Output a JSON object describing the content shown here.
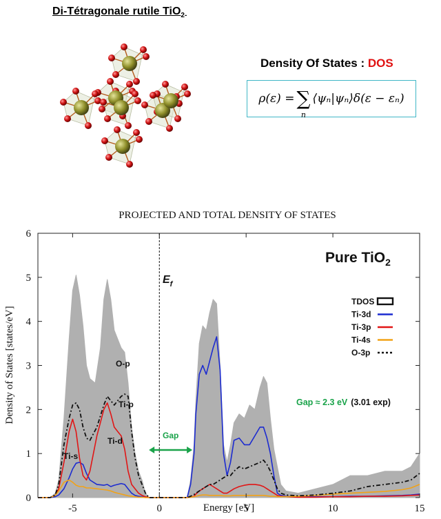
{
  "header": {
    "crystal_title_main": "Di-Tétragonale rutile TiO",
    "crystal_title_sub": "2-",
    "dos_title_prefix": "Density Of States : ",
    "dos_title_acronym": "DOS",
    "formula": {
      "lhs": "ρ(ε) = ",
      "sum_symbol": "∑",
      "sum_index": "n",
      "rhs": "⟨ψₙ|ψₙ⟩δ(ε − εₙ)"
    }
  },
  "colors": {
    "tdos_fill": "#b0b0b0",
    "ti3d": "#1c2bd0",
    "ti3p": "#e11515",
    "ti4s": "#f2a216",
    "o3p": "#111111",
    "gap_green": "#1aa34a",
    "accent_red": "#e01010",
    "formula_border": "#3fb6c6",
    "ti_atom": "#8f8f2a",
    "o_atom": "#d11414"
  },
  "chart_data": {
    "type": "area",
    "title": "PROJECTED AND TOTAL DENSITY OF STATES",
    "xlabel": "Energy [eV]",
    "ylabel": "Density of States [states/eV]",
    "xlim": [
      -7,
      15
    ],
    "ylim": [
      0,
      6
    ],
    "xticks": [
      -5,
      0,
      5,
      10,
      15
    ],
    "yticks": [
      0,
      1,
      2,
      3,
      4,
      5,
      6
    ],
    "grid": false,
    "legend_position": "right",
    "annotations": {
      "system": "Pure TiO",
      "system_sub": "2",
      "fermi_level_label": "E",
      "fermi_level_sub": "f",
      "fermi_level_x": 0,
      "gap_label": "Gap",
      "gap_start": -0.6,
      "gap_end": 1.9,
      "gap_value": "Gap ≈ 2.3 eV",
      "gap_exp": "(3.01 exp)",
      "op_label": "O-p",
      "tip_label": "Ti-p",
      "tid_label": "Ti-d",
      "tis_label": "Ti-s"
    },
    "series": [
      {
        "name": "TDOS",
        "x": [
          -7,
          -6.3,
          -6,
          -5.8,
          -5.5,
          -5.2,
          -5,
          -4.8,
          -4.6,
          -4.4,
          -4.2,
          -4,
          -3.7,
          -3.4,
          -3.2,
          -3,
          -2.8,
          -2.6,
          -2.4,
          -2.2,
          -2,
          -1.8,
          -1.6,
          -1.4,
          -1.2,
          -1,
          -0.8,
          -0.6,
          1.6,
          1.8,
          2,
          2.1,
          2.3,
          2.5,
          2.7,
          2.9,
          3.1,
          3.3,
          3.5,
          3.7,
          3.9,
          4.1,
          4.3,
          4.6,
          4.9,
          5.2,
          5.5,
          5.8,
          6,
          6.2,
          6.4,
          6.6,
          6.8,
          7,
          7.3,
          8,
          9,
          10,
          11,
          12,
          13,
          14,
          14.5,
          15
        ],
        "values": [
          0,
          0,
          0.1,
          0.4,
          1.8,
          3.6,
          4.7,
          5.05,
          4.6,
          3.9,
          3.0,
          2.7,
          2.6,
          3.4,
          4.5,
          4.95,
          4.5,
          3.8,
          3.6,
          3.4,
          3.3,
          2.6,
          1.6,
          1.0,
          0.6,
          0.4,
          0.1,
          0,
          0,
          0.4,
          1.2,
          2.2,
          3.5,
          3.9,
          3.8,
          4.2,
          4.5,
          4.4,
          3.0,
          1.2,
          0.8,
          1.2,
          1.7,
          1.9,
          1.8,
          2.1,
          2.0,
          2.5,
          2.75,
          2.6,
          1.8,
          1.1,
          0.7,
          0.3,
          0.15,
          0.1,
          0.2,
          0.3,
          0.5,
          0.5,
          0.6,
          0.6,
          0.7,
          1.0
        ]
      },
      {
        "name": "Ti-3d",
        "x": [
          -7,
          -6.3,
          -6,
          -5.8,
          -5.5,
          -5.2,
          -5,
          -4.8,
          -4.6,
          -4.4,
          -4.2,
          -4,
          -3.6,
          -3.2,
          -3,
          -2.8,
          -2.6,
          -2.4,
          -2.2,
          -2,
          -1.8,
          -1.6,
          -1.4,
          -1.2,
          -1,
          -0.8,
          -0.6,
          1.6,
          1.8,
          2,
          2.1,
          2.3,
          2.5,
          2.7,
          2.9,
          3.1,
          3.3,
          3.5,
          3.7,
          3.9,
          4.1,
          4.3,
          4.6,
          4.9,
          5.2,
          5.5,
          5.8,
          6,
          6.2,
          6.4,
          6.6,
          6.8,
          7,
          7.3,
          8,
          9,
          10,
          11,
          12,
          13,
          14,
          14.5,
          15
        ],
        "values": [
          0,
          0,
          0.02,
          0.06,
          0.2,
          0.45,
          0.65,
          0.78,
          0.8,
          0.75,
          0.55,
          0.4,
          0.3,
          0.28,
          0.3,
          0.25,
          0.28,
          0.3,
          0.32,
          0.3,
          0.2,
          0.1,
          0.05,
          0.03,
          0.02,
          0.01,
          0,
          0,
          0.3,
          1.0,
          1.9,
          2.8,
          3.0,
          2.8,
          3.1,
          3.4,
          3.65,
          2.9,
          1.0,
          0.5,
          0.8,
          1.3,
          1.35,
          1.2,
          1.2,
          1.4,
          1.6,
          1.6,
          1.35,
          1.0,
          0.5,
          0.1,
          0.05,
          0.03,
          0.02,
          0.02,
          0.02,
          0.03,
          0.03,
          0.04,
          0.05,
          0.06,
          0.08
        ]
      },
      {
        "name": "Ti-3p",
        "x": [
          -7,
          -6.3,
          -6,
          -5.8,
          -5.5,
          -5.2,
          -5,
          -4.8,
          -4.6,
          -4.4,
          -4.2,
          -4,
          -3.6,
          -3.2,
          -3,
          -2.8,
          -2.6,
          -2.4,
          -2.2,
          -2,
          -1.8,
          -1.6,
          -1.4,
          -1.2,
          -1,
          -0.8,
          -0.6,
          1.6,
          1.8,
          2,
          2.1,
          2.3,
          2.5,
          2.7,
          2.9,
          3.1,
          3.3,
          3.5,
          3.7,
          3.9,
          4.1,
          4.3,
          4.6,
          4.9,
          5.2,
          5.5,
          5.8,
          6,
          6.2,
          6.4,
          6.6,
          6.8,
          7,
          7.3,
          8,
          9,
          10,
          11,
          12,
          13,
          14,
          14.5,
          15
        ],
        "values": [
          0,
          0,
          0.05,
          0.2,
          0.8,
          1.5,
          1.78,
          1.5,
          0.9,
          0.5,
          0.4,
          0.6,
          1.4,
          2.0,
          2.15,
          1.9,
          1.6,
          1.5,
          1.4,
          1.1,
          0.6,
          0.3,
          0.2,
          0.1,
          0.05,
          0.02,
          0,
          0,
          0.01,
          0.03,
          0.08,
          0.15,
          0.2,
          0.25,
          0.3,
          0.25,
          0.2,
          0.15,
          0.1,
          0.1,
          0.15,
          0.2,
          0.25,
          0.28,
          0.3,
          0.3,
          0.28,
          0.25,
          0.2,
          0.15,
          0.1,
          0.05,
          0.03,
          0.02,
          0.01,
          0.01,
          0.02,
          0.02,
          0.03,
          0.03,
          0.04,
          0.05,
          0.06
        ]
      },
      {
        "name": "Ti-4s",
        "x": [
          -7,
          -6.3,
          -6,
          -5.8,
          -5.5,
          -5.2,
          -5,
          -4.8,
          -4.6,
          -4.4,
          -4.2,
          -4,
          -3.6,
          -3.2,
          -3,
          -2.8,
          -2.6,
          -2.4,
          -2.2,
          -2,
          -1.8,
          -1.6,
          -1.4,
          -1.2,
          -1,
          -0.8,
          -0.6,
          1.6,
          1.8,
          2,
          2.1,
          2.3,
          2.5,
          2.7,
          2.9,
          3.1,
          3.3,
          3.5,
          3.7,
          3.9,
          4.1,
          4.3,
          4.6,
          4.9,
          5.2,
          5.5,
          5.8,
          6,
          6.2,
          6.4,
          6.6,
          6.8,
          7,
          7.3,
          8,
          9,
          10,
          11,
          12,
          13,
          14,
          14.5,
          15
        ],
        "values": [
          0,
          0,
          0.05,
          0.15,
          0.35,
          0.4,
          0.35,
          0.28,
          0.25,
          0.25,
          0.22,
          0.22,
          0.2,
          0.18,
          0.17,
          0.15,
          0.12,
          0.1,
          0.08,
          0.06,
          0.04,
          0.03,
          0.02,
          0.01,
          0.01,
          0,
          0,
          0,
          0.01,
          0.02,
          0.03,
          0.05,
          0.06,
          0.06,
          0.05,
          0.05,
          0.05,
          0.05,
          0.04,
          0.04,
          0.04,
          0.05,
          0.05,
          0.05,
          0.05,
          0.05,
          0.05,
          0.05,
          0.04,
          0.03,
          0.03,
          0.02,
          0.02,
          0.02,
          0.03,
          0.05,
          0.08,
          0.1,
          0.12,
          0.14,
          0.18,
          0.22,
          0.3
        ]
      },
      {
        "name": "O-3p",
        "x": [
          -7,
          -6.3,
          -6,
          -5.8,
          -5.5,
          -5.2,
          -5,
          -4.8,
          -4.6,
          -4.4,
          -4.2,
          -4,
          -3.6,
          -3.2,
          -3,
          -2.8,
          -2.6,
          -2.4,
          -2.2,
          -2,
          -1.8,
          -1.6,
          -1.4,
          -1.2,
          -1,
          -0.8,
          -0.6,
          1.6,
          1.8,
          2,
          2.1,
          2.3,
          2.5,
          2.7,
          2.9,
          3.1,
          3.3,
          3.5,
          3.7,
          3.9,
          4.1,
          4.3,
          4.6,
          4.9,
          5.2,
          5.5,
          5.8,
          6,
          6.2,
          6.4,
          6.6,
          6.8,
          7,
          7.3,
          8,
          9,
          10,
          11,
          12,
          13,
          14,
          14.5,
          15
        ],
        "values": [
          0,
          0,
          0.06,
          0.3,
          1.2,
          1.8,
          2.1,
          2.15,
          2.0,
          1.6,
          1.35,
          1.3,
          1.6,
          2.1,
          2.3,
          2.2,
          2.1,
          2.2,
          2.3,
          2.35,
          2.3,
          1.5,
          0.9,
          0.5,
          0.3,
          0.1,
          0,
          0,
          0.03,
          0.07,
          0.1,
          0.15,
          0.2,
          0.25,
          0.3,
          0.3,
          0.35,
          0.4,
          0.45,
          0.5,
          0.5,
          0.6,
          0.7,
          0.65,
          0.7,
          0.75,
          0.8,
          0.85,
          0.75,
          0.6,
          0.4,
          0.2,
          0.1,
          0.06,
          0.04,
          0.06,
          0.1,
          0.15,
          0.25,
          0.3,
          0.35,
          0.4,
          0.55
        ]
      }
    ]
  }
}
